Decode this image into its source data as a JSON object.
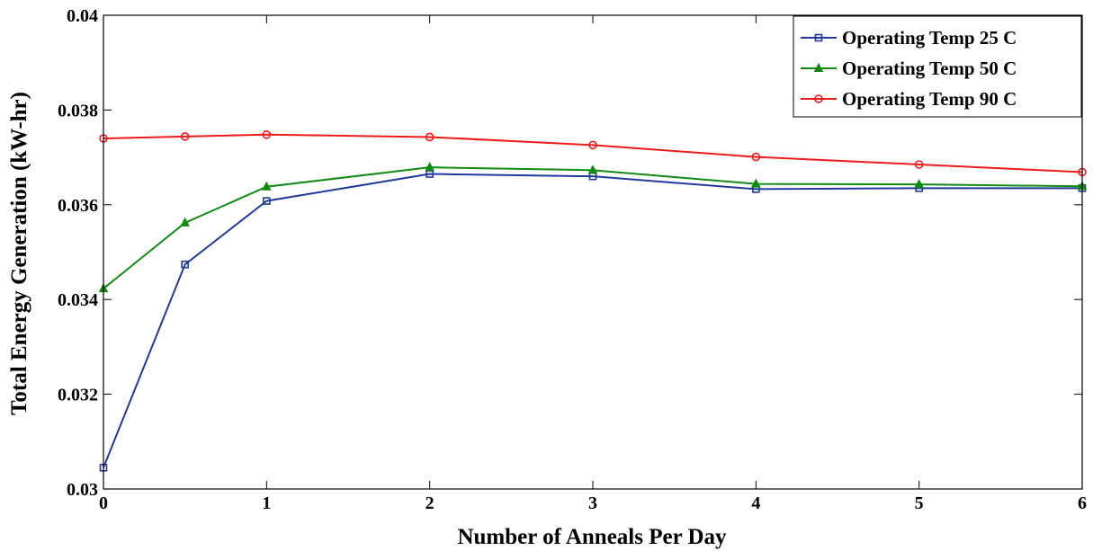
{
  "chart_data": {
    "type": "line",
    "xlabel": "Number of Anneals Per Day",
    "ylabel": "Total Energy Generation (kW-hr)",
    "xlim": [
      0,
      6
    ],
    "ylim": [
      0.03,
      0.04
    ],
    "xticks": [
      0,
      1,
      2,
      3,
      4,
      5,
      6
    ],
    "yticks": [
      0.03,
      0.032,
      0.034,
      0.036,
      0.038,
      0.04
    ],
    "ytick_labels": [
      "0.03",
      "0.032",
      "0.034",
      "0.036",
      "0.038",
      "0.04"
    ],
    "grid": false,
    "legend_position": "top-right",
    "x": [
      0,
      0.5,
      1,
      2,
      3,
      4,
      5,
      6
    ],
    "series": [
      {
        "name": "Operating Temp 25 C",
        "color": "#1f3a9a",
        "marker": "square",
        "values": [
          0.03045,
          0.03474,
          0.03608,
          0.03665,
          0.0366,
          0.03633,
          0.03635,
          0.03635
        ]
      },
      {
        "name": "Operating Temp 50 C",
        "color": "#118a11",
        "marker": "triangle",
        "values": [
          0.03423,
          0.03562,
          0.03638,
          0.03679,
          0.03673,
          0.03644,
          0.03643,
          0.03639
        ]
      },
      {
        "name": "Operating Temp 90 C",
        "color": "#ef1a1a",
        "marker": "circle",
        "values": [
          0.0374,
          0.03744,
          0.03748,
          0.03743,
          0.03726,
          0.03701,
          0.03685,
          0.03669
        ]
      }
    ]
  }
}
